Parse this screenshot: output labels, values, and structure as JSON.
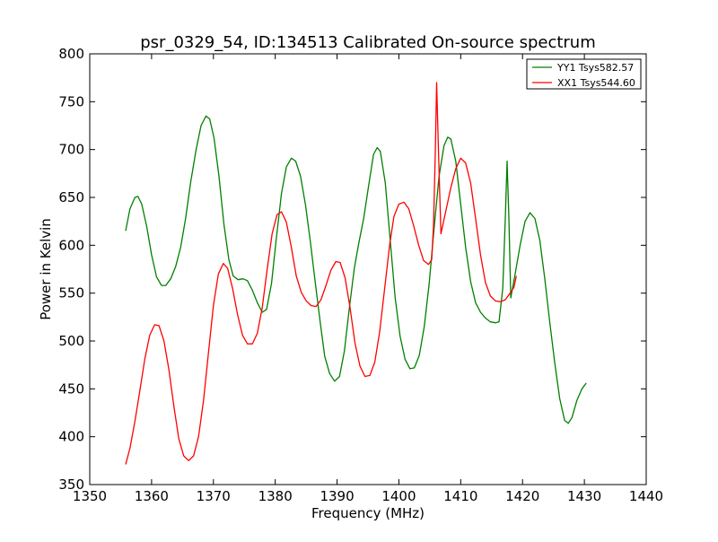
{
  "chart_data": {
    "type": "line",
    "title": "psr_0329_54, ID:134513 Calibrated On-source spectrum",
    "xlabel": "Frequency (MHz)",
    "ylabel": "Power in Kelvin",
    "xlim": [
      1350,
      1440
    ],
    "ylim": [
      350,
      800
    ],
    "xticks": [
      1350,
      1360,
      1370,
      1380,
      1390,
      1400,
      1410,
      1420,
      1430,
      1440
    ],
    "yticks": [
      350,
      400,
      450,
      500,
      550,
      600,
      650,
      700,
      750,
      800
    ],
    "grid": false,
    "legend_position": "top-right",
    "series": [
      {
        "name": "YY1 Tsys582.57",
        "color": "#008000",
        "points": [
          [
            1355.8,
            615
          ],
          [
            1356.5,
            638
          ],
          [
            1357.3,
            650
          ],
          [
            1357.8,
            651
          ],
          [
            1358.4,
            643
          ],
          [
            1359.2,
            620
          ],
          [
            1360.0,
            590
          ],
          [
            1360.8,
            567
          ],
          [
            1361.6,
            558
          ],
          [
            1362.3,
            558
          ],
          [
            1363.1,
            565
          ],
          [
            1363.9,
            578
          ],
          [
            1364.7,
            598
          ],
          [
            1365.5,
            628
          ],
          [
            1366.3,
            665
          ],
          [
            1367.2,
            700
          ],
          [
            1368.0,
            725
          ],
          [
            1368.8,
            735
          ],
          [
            1369.4,
            732
          ],
          [
            1370.1,
            712
          ],
          [
            1370.9,
            672
          ],
          [
            1371.7,
            622
          ],
          [
            1372.5,
            585
          ],
          [
            1373.2,
            568
          ],
          [
            1374.0,
            564
          ],
          [
            1374.8,
            565
          ],
          [
            1375.5,
            563
          ],
          [
            1376.3,
            553
          ],
          [
            1377.1,
            540
          ],
          [
            1377.9,
            530
          ],
          [
            1378.6,
            533
          ],
          [
            1379.4,
            560
          ],
          [
            1380.2,
            608
          ],
          [
            1381.0,
            654
          ],
          [
            1381.8,
            682
          ],
          [
            1382.6,
            691
          ],
          [
            1383.3,
            688
          ],
          [
            1384.1,
            672
          ],
          [
            1384.9,
            642
          ],
          [
            1385.7,
            603
          ],
          [
            1386.5,
            560
          ],
          [
            1387.3,
            518
          ],
          [
            1388.0,
            484
          ],
          [
            1388.8,
            466
          ],
          [
            1389.6,
            458
          ],
          [
            1390.4,
            463
          ],
          [
            1391.2,
            490
          ],
          [
            1392.0,
            535
          ],
          [
            1392.8,
            576
          ],
          [
            1393.5,
            602
          ],
          [
            1394.3,
            628
          ],
          [
            1395.1,
            662
          ],
          [
            1395.9,
            695
          ],
          [
            1396.5,
            702
          ],
          [
            1397.0,
            698
          ],
          [
            1397.8,
            665
          ],
          [
            1398.6,
            605
          ],
          [
            1399.4,
            545
          ],
          [
            1400.2,
            505
          ],
          [
            1401.0,
            481
          ],
          [
            1401.8,
            471
          ],
          [
            1402.5,
            472
          ],
          [
            1403.3,
            485
          ],
          [
            1404.1,
            515
          ],
          [
            1404.9,
            560
          ],
          [
            1405.7,
            618
          ],
          [
            1406.5,
            672
          ],
          [
            1407.3,
            704
          ],
          [
            1407.9,
            713
          ],
          [
            1408.4,
            711
          ],
          [
            1409.2,
            688
          ],
          [
            1410.0,
            643
          ],
          [
            1410.8,
            598
          ],
          [
            1411.6,
            562
          ],
          [
            1412.4,
            540
          ],
          [
            1413.2,
            530
          ],
          [
            1414.0,
            524
          ],
          [
            1414.8,
            520
          ],
          [
            1415.6,
            519
          ],
          [
            1416.2,
            520
          ],
          [
            1416.8,
            555
          ],
          [
            1417.2,
            625
          ],
          [
            1417.5,
            688
          ],
          [
            1417.8,
            625
          ],
          [
            1418.1,
            545
          ],
          [
            1418.8,
            570
          ],
          [
            1419.6,
            600
          ],
          [
            1420.4,
            625
          ],
          [
            1421.2,
            634
          ],
          [
            1422.0,
            628
          ],
          [
            1422.8,
            605
          ],
          [
            1423.6,
            565
          ],
          [
            1424.4,
            520
          ],
          [
            1425.2,
            478
          ],
          [
            1426.0,
            440
          ],
          [
            1426.8,
            417
          ],
          [
            1427.4,
            414
          ],
          [
            1428.0,
            420
          ],
          [
            1428.8,
            438
          ],
          [
            1429.6,
            450
          ],
          [
            1430.3,
            456
          ]
        ]
      },
      {
        "name": "XX1 Tsys544.60",
        "color": "#ff0000",
        "points": [
          [
            1355.8,
            371
          ],
          [
            1356.5,
            388
          ],
          [
            1357.3,
            416
          ],
          [
            1358.1,
            448
          ],
          [
            1358.9,
            481
          ],
          [
            1359.7,
            506
          ],
          [
            1360.5,
            517
          ],
          [
            1361.2,
            516
          ],
          [
            1362.0,
            500
          ],
          [
            1362.8,
            470
          ],
          [
            1363.6,
            432
          ],
          [
            1364.4,
            398
          ],
          [
            1365.2,
            380
          ],
          [
            1366.0,
            375
          ],
          [
            1366.8,
            380
          ],
          [
            1367.6,
            400
          ],
          [
            1368.4,
            438
          ],
          [
            1369.2,
            488
          ],
          [
            1370.0,
            537
          ],
          [
            1370.8,
            570
          ],
          [
            1371.6,
            581
          ],
          [
            1372.3,
            576
          ],
          [
            1373.1,
            555
          ],
          [
            1373.9,
            528
          ],
          [
            1374.7,
            506
          ],
          [
            1375.5,
            497
          ],
          [
            1376.3,
            497
          ],
          [
            1377.1,
            508
          ],
          [
            1377.9,
            535
          ],
          [
            1378.7,
            575
          ],
          [
            1379.5,
            612
          ],
          [
            1380.3,
            632
          ],
          [
            1381.0,
            635
          ],
          [
            1381.8,
            624
          ],
          [
            1382.6,
            598
          ],
          [
            1383.4,
            568
          ],
          [
            1384.2,
            551
          ],
          [
            1385.0,
            542
          ],
          [
            1385.8,
            537
          ],
          [
            1386.6,
            536
          ],
          [
            1387.4,
            543
          ],
          [
            1388.2,
            558
          ],
          [
            1389.0,
            574
          ],
          [
            1389.8,
            583
          ],
          [
            1390.5,
            582
          ],
          [
            1391.3,
            566
          ],
          [
            1392.1,
            535
          ],
          [
            1392.9,
            498
          ],
          [
            1393.7,
            474
          ],
          [
            1394.5,
            463
          ],
          [
            1395.3,
            464
          ],
          [
            1396.1,
            478
          ],
          [
            1396.9,
            510
          ],
          [
            1397.7,
            555
          ],
          [
            1398.5,
            600
          ],
          [
            1399.2,
            630
          ],
          [
            1400.0,
            643
          ],
          [
            1400.8,
            645
          ],
          [
            1401.6,
            638
          ],
          [
            1402.4,
            620
          ],
          [
            1403.2,
            600
          ],
          [
            1404.0,
            584
          ],
          [
            1404.8,
            580
          ],
          [
            1405.3,
            585
          ],
          [
            1405.6,
            620
          ],
          [
            1405.9,
            700
          ],
          [
            1406.1,
            770
          ],
          [
            1406.4,
            700
          ],
          [
            1406.8,
            612
          ],
          [
            1407.6,
            636
          ],
          [
            1408.4,
            660
          ],
          [
            1409.2,
            680
          ],
          [
            1410.0,
            691
          ],
          [
            1410.8,
            686
          ],
          [
            1411.6,
            665
          ],
          [
            1412.4,
            628
          ],
          [
            1413.2,
            590
          ],
          [
            1414.0,
            561
          ],
          [
            1414.8,
            547
          ],
          [
            1415.6,
            542
          ],
          [
            1416.4,
            541
          ],
          [
            1417.2,
            543
          ],
          [
            1418.0,
            550
          ],
          [
            1418.6,
            556
          ],
          [
            1419.0,
            568
          ]
        ]
      }
    ]
  }
}
